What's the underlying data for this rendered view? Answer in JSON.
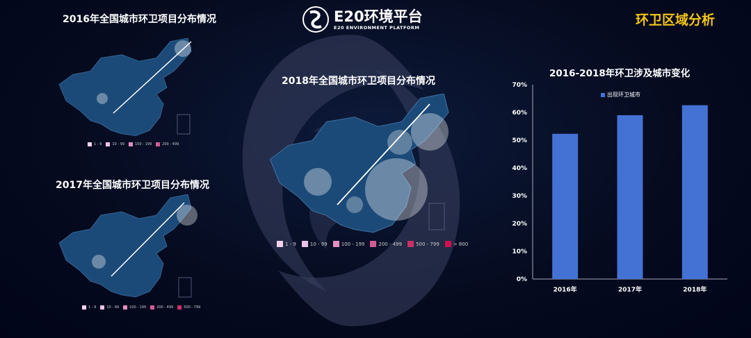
{
  "header": {
    "logo_text": "E20环境平台",
    "logo_subtitle": "E20 ENVIRONMENT PLATFORM",
    "section_title": "环卫区域分析"
  },
  "maps": [
    {
      "title": "2016年全国城市环卫项目分布情况",
      "legend": [
        "1 - 9",
        "10 - 99",
        "100 - 199",
        "200 - 499"
      ]
    },
    {
      "title": "2017年全国城市环卫项目分布情况",
      "legend": [
        "1 - 9",
        "10 - 99",
        "100 - 199",
        "200 - 499",
        "500 - 799"
      ]
    },
    {
      "title": "2018年全国城市环卫项目分布情况",
      "legend": [
        "1 - 9",
        "10 - 99",
        "100 - 199",
        "200 - 499",
        "500 - 799",
        "> 800"
      ]
    }
  ],
  "legend_colors": [
    "#f3d3ee",
    "#ecc2e6",
    "#e38fbf",
    "#d45a95",
    "#c9306a",
    "#d0104e"
  ],
  "chart_data": {
    "type": "bar",
    "title": "2016-2018年环卫涉及城市变化",
    "categories": [
      "2016年",
      "2017年",
      "2018年"
    ],
    "series": [
      {
        "name": "出现环卫城市",
        "values": [
          52.3,
          59.0,
          62.6
        ]
      }
    ],
    "ylim": [
      0,
      70
    ],
    "yticks": [
      "0%",
      "10%",
      "20%",
      "30%",
      "40%",
      "50%",
      "60%",
      "70%"
    ],
    "legend_position": "top-center",
    "grid": false,
    "bar_color": "#4472d4"
  }
}
